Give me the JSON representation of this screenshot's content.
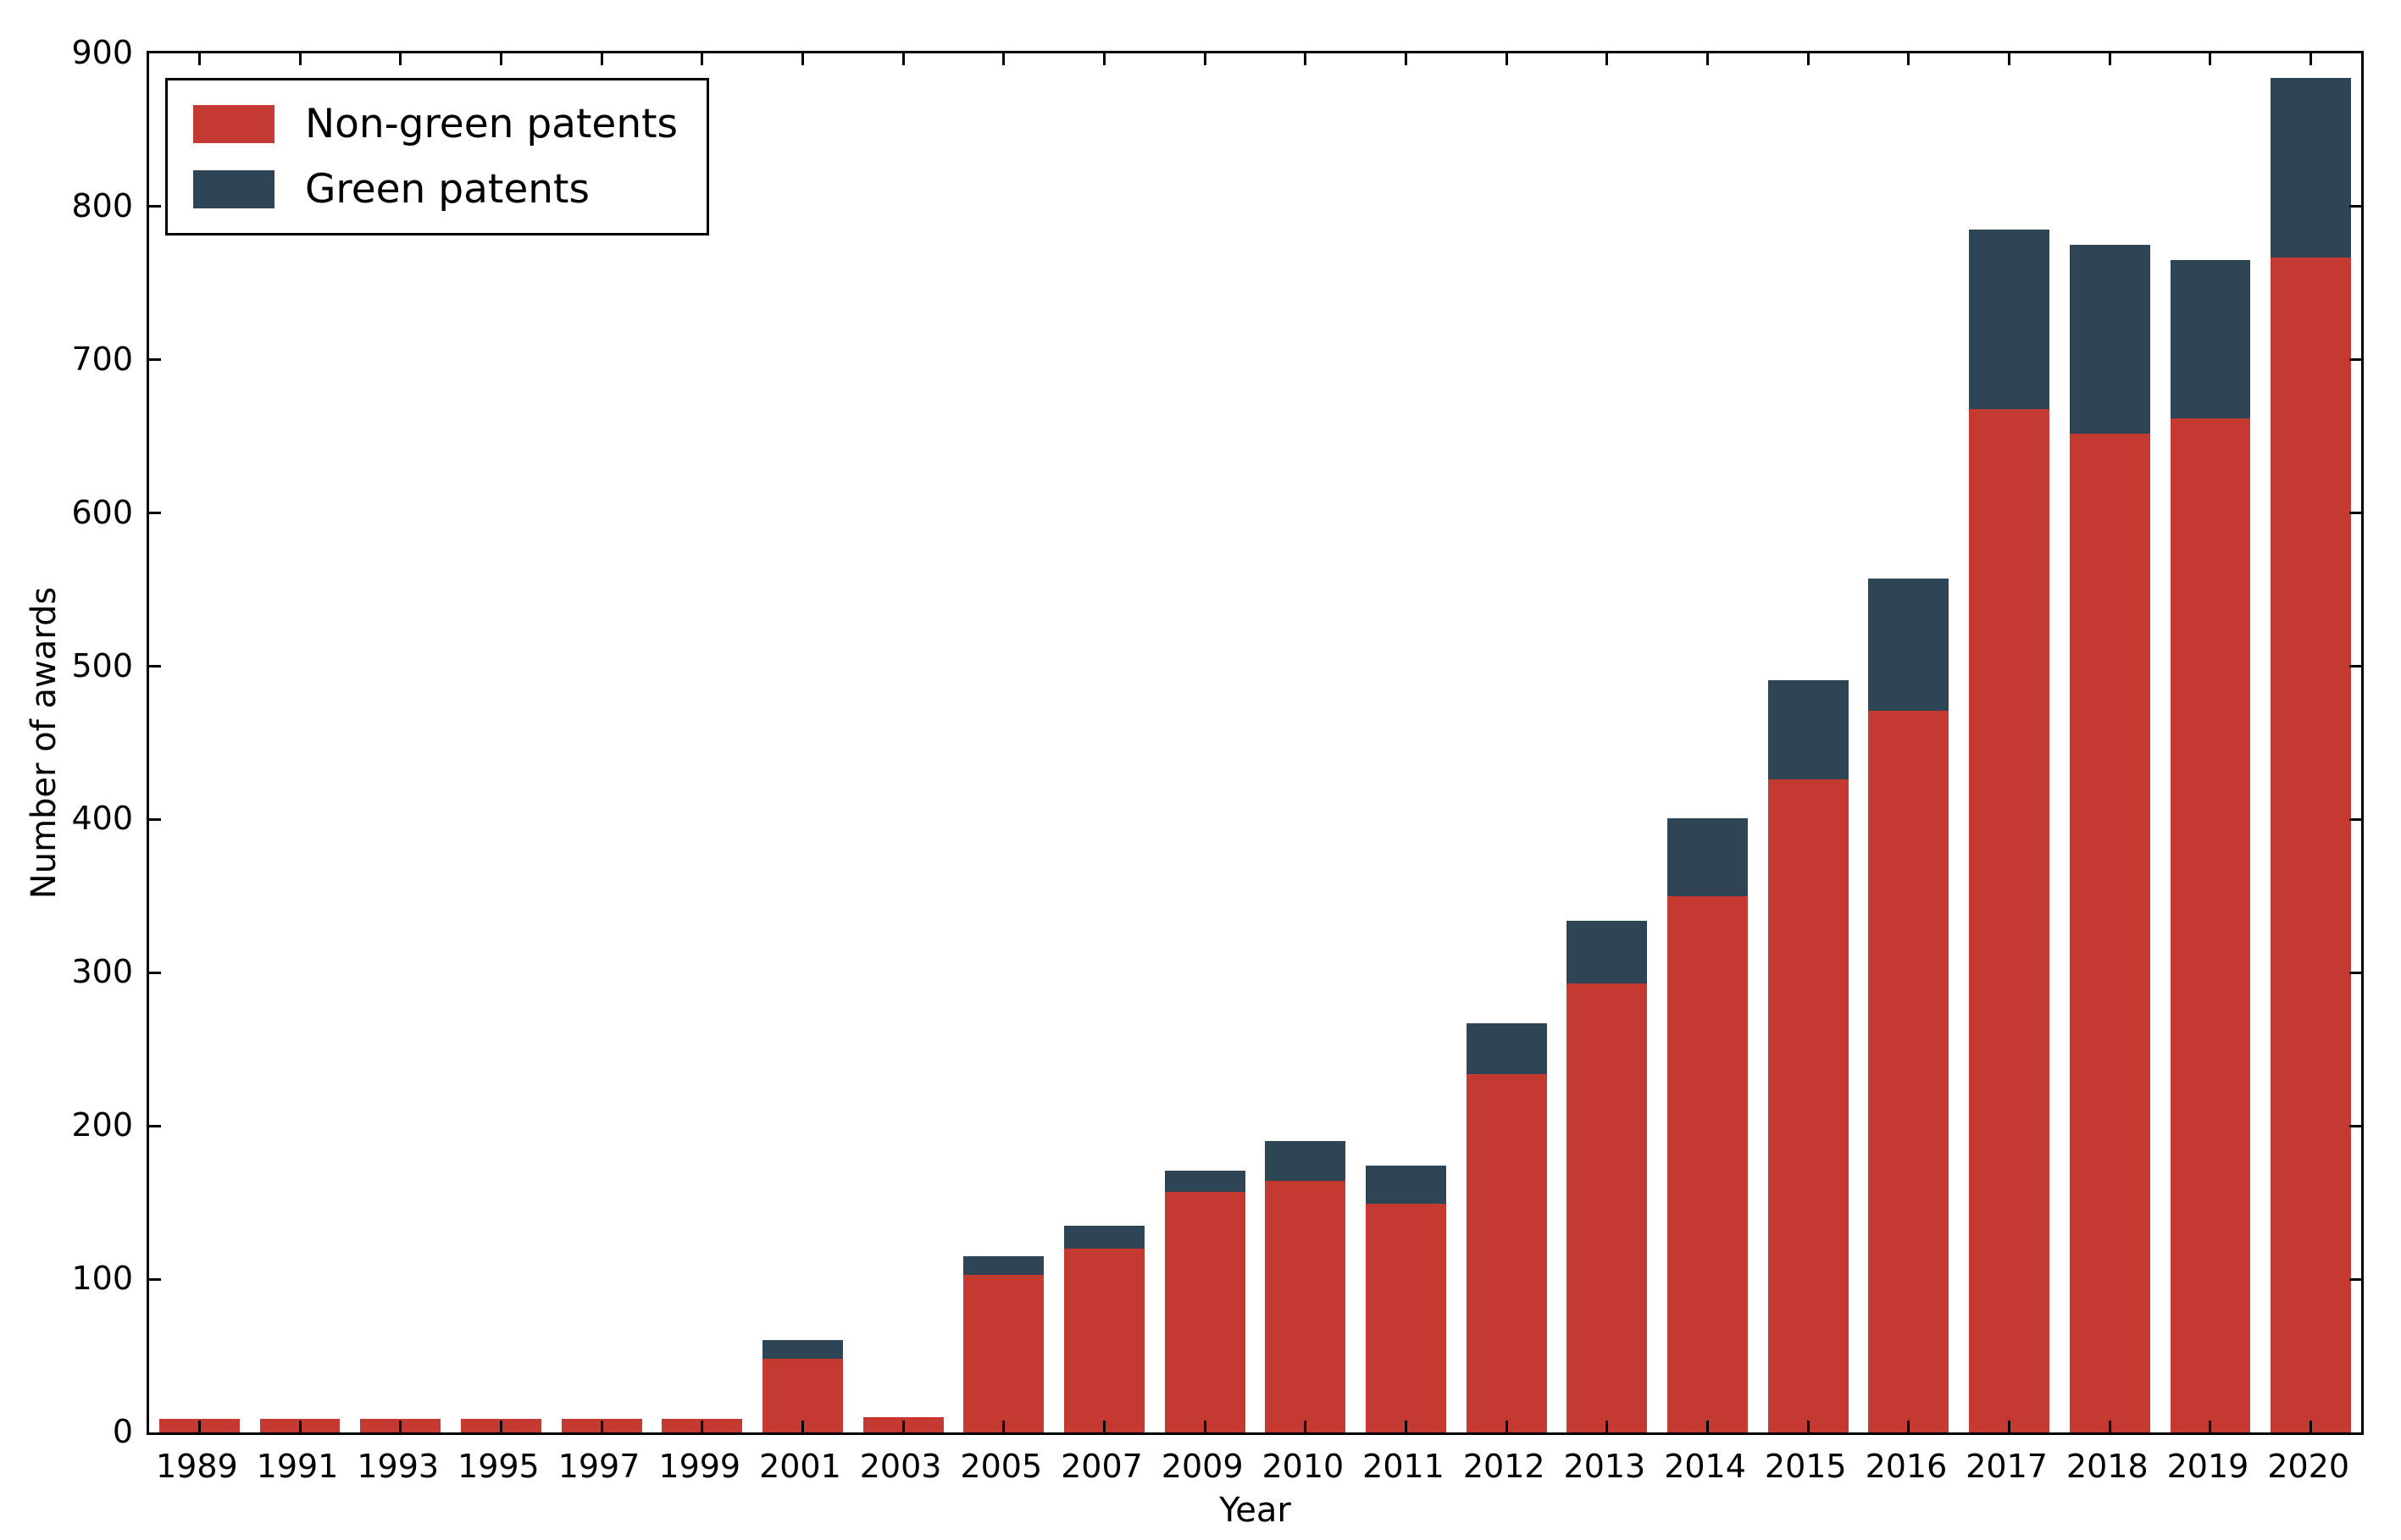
{
  "chart_data": {
    "type": "bar",
    "stacked": true,
    "title": "",
    "xlabel": "Year",
    "ylabel": "Number of awards",
    "categories": [
      "1989",
      "1991",
      "1993",
      "1995",
      "1997",
      "1999",
      "2001",
      "2003",
      "2005",
      "2007",
      "2009",
      "2010",
      "2011",
      "2012",
      "2013",
      "2014",
      "2015",
      "2016",
      "2017",
      "2018",
      "2019",
      "2020"
    ],
    "series": [
      {
        "name": "Non-green patents",
        "color": "#c43a30",
        "values": [
          9,
          9,
          9,
          9,
          9,
          9,
          48,
          10,
          103,
          120,
          157,
          164,
          149,
          234,
          293,
          350,
          426,
          471,
          668,
          652,
          662,
          767
        ]
      },
      {
        "name": "Green patents",
        "color": "#2e4556",
        "values": [
          0,
          0,
          0,
          0,
          0,
          0,
          12,
          0,
          12,
          15,
          14,
          26,
          25,
          33,
          41,
          51,
          65,
          86,
          117,
          123,
          103,
          117
        ]
      }
    ],
    "ylim": [
      0,
      900
    ],
    "y_ticks": [
      0,
      100,
      200,
      300,
      400,
      500,
      600,
      700,
      800,
      900
    ],
    "grid": false,
    "legend_position": "upper-left",
    "bar_width_fraction": 0.8,
    "tick_direction": "in",
    "ticks_on_all_spines": true
  },
  "axes": {
    "x_label": "Year",
    "y_label": "Number of awards"
  },
  "colors": {
    "background": "#ffffff",
    "axis": "#000000",
    "text": "#000000",
    "non_green": "#c43a30",
    "green": "#2e4556"
  }
}
